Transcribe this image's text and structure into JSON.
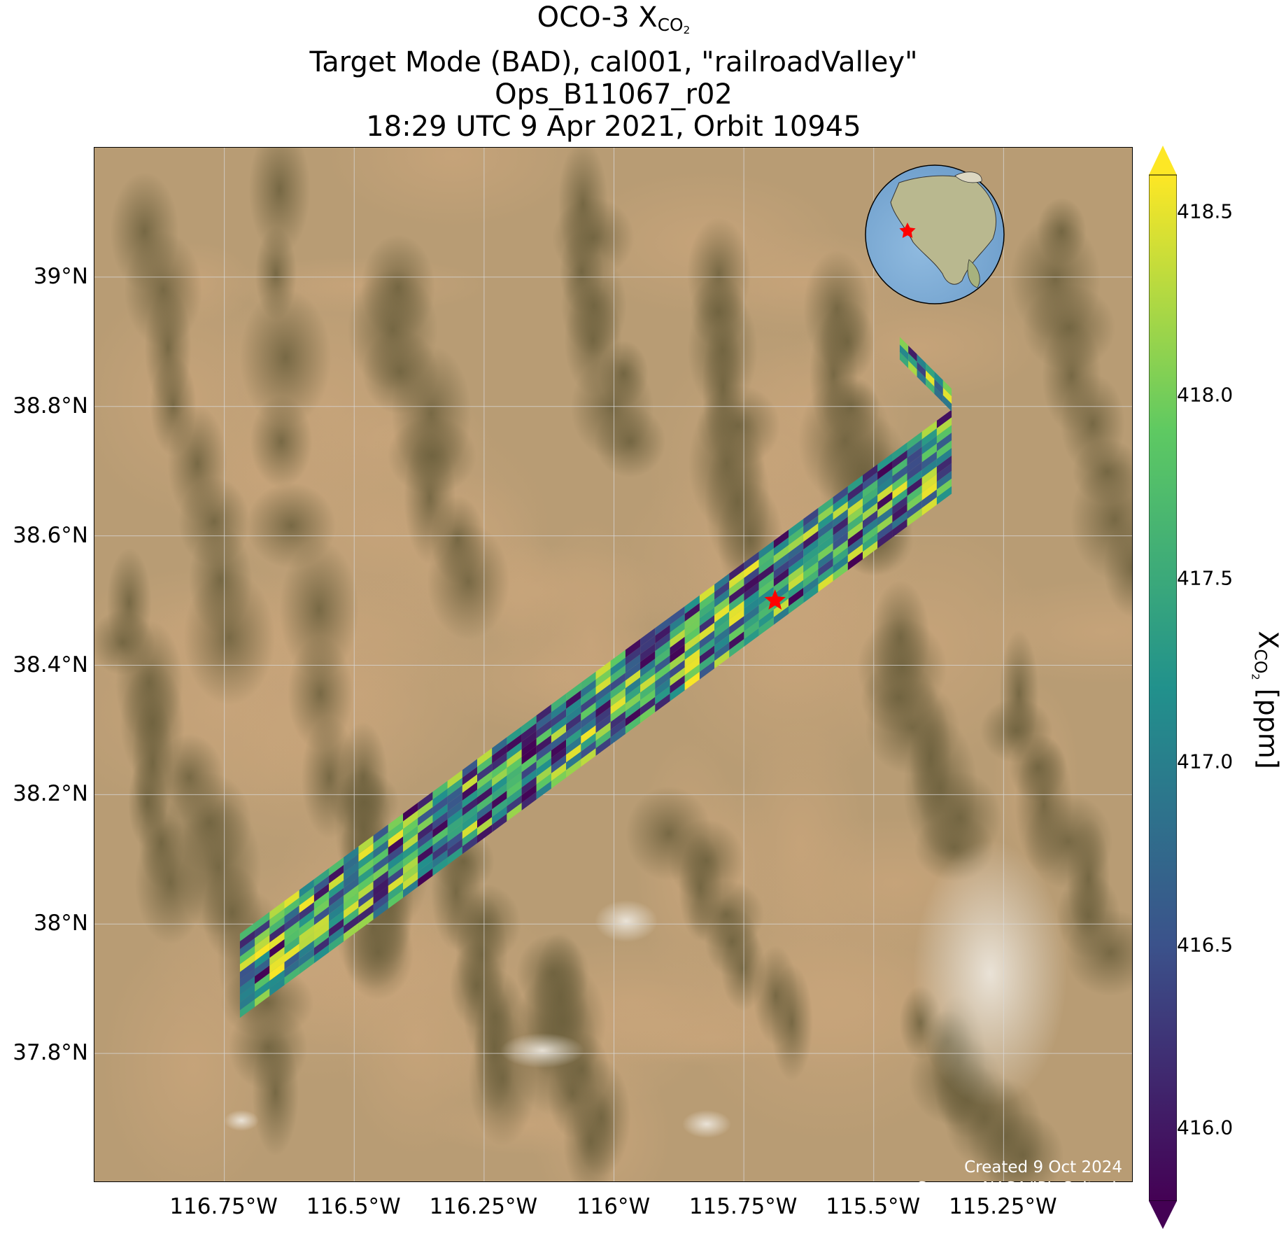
{
  "title": {
    "line1_prefix": "OCO-3 X",
    "line1_sub": "CO",
    "line1_sub2": "2",
    "line2": "Target Mode (BAD), cal001, \"railroadValley\"",
    "line3": "Ops_B11067_r02",
    "line4": "18:29 UTC 9 Apr 2021, Orbit 10945"
  },
  "map": {
    "lon_range": [
      -117.0,
      -115.0
    ],
    "lat_range": [
      37.6,
      39.2
    ],
    "lat_ticks": [
      {
        "value": 39.0,
        "label": "39°N"
      },
      {
        "value": 38.8,
        "label": "38.8°N"
      },
      {
        "value": 38.6,
        "label": "38.6°N"
      },
      {
        "value": 38.4,
        "label": "38.4°N"
      },
      {
        "value": 38.2,
        "label": "38.2°N"
      },
      {
        "value": 38.0,
        "label": "38°N"
      },
      {
        "value": 37.8,
        "label": "37.8°N"
      }
    ],
    "lon_ticks": [
      {
        "value": -116.75,
        "label": "116.75°W"
      },
      {
        "value": -116.5,
        "label": "116.5°W"
      },
      {
        "value": -116.25,
        "label": "116.25°W"
      },
      {
        "value": -116.0,
        "label": "116°W"
      },
      {
        "value": -115.75,
        "label": "115.75°W"
      },
      {
        "value": -115.5,
        "label": "115.5°W"
      },
      {
        "value": -115.25,
        "label": "115.25°W"
      }
    ],
    "target": {
      "name": "railroadValley",
      "lon": -115.69,
      "lat": 38.5,
      "marker": "red-star"
    },
    "basemap": "satellite-imagery-desert-terrain",
    "swath_color_scale": "viridis",
    "swaths": [
      {
        "start": {
          "lon": -116.72,
          "lat": 37.92
        },
        "end": {
          "lon": -115.35,
          "lat": 38.73
        },
        "cross_lat": 0.13,
        "note": "main swath"
      },
      {
        "start": {
          "lon": -115.45,
          "lat": 38.89
        },
        "end": {
          "lon": -115.35,
          "lat": 38.81
        },
        "cross_lat": 0.035,
        "note": "upper fragment"
      }
    ]
  },
  "inset_globe": {
    "name": "north-america-locator",
    "marker": "red-star"
  },
  "credits": {
    "created": "Created 9 Oct 2024",
    "source": "Source: NASA/JPL-Caltech"
  },
  "colorbar": {
    "label_prefix": "X",
    "label_sub": "CO",
    "label_sub2": "2",
    "label_suffix": " [ppm]",
    "colormap": "viridis",
    "range": [
      415.8,
      418.6
    ],
    "extend": "both",
    "ticks": [
      {
        "value": 418.5,
        "label": "418.5"
      },
      {
        "value": 418.0,
        "label": "418.0"
      },
      {
        "value": 417.5,
        "label": "417.5"
      },
      {
        "value": 417.0,
        "label": "417.0"
      },
      {
        "value": 416.5,
        "label": "416.5"
      },
      {
        "value": 416.0,
        "label": "416.0"
      }
    ],
    "colors": {
      "c0": "#440154",
      "c1": "#3b528b",
      "c2": "#21918c",
      "c3": "#5ec962",
      "c4": "#fde725"
    }
  }
}
